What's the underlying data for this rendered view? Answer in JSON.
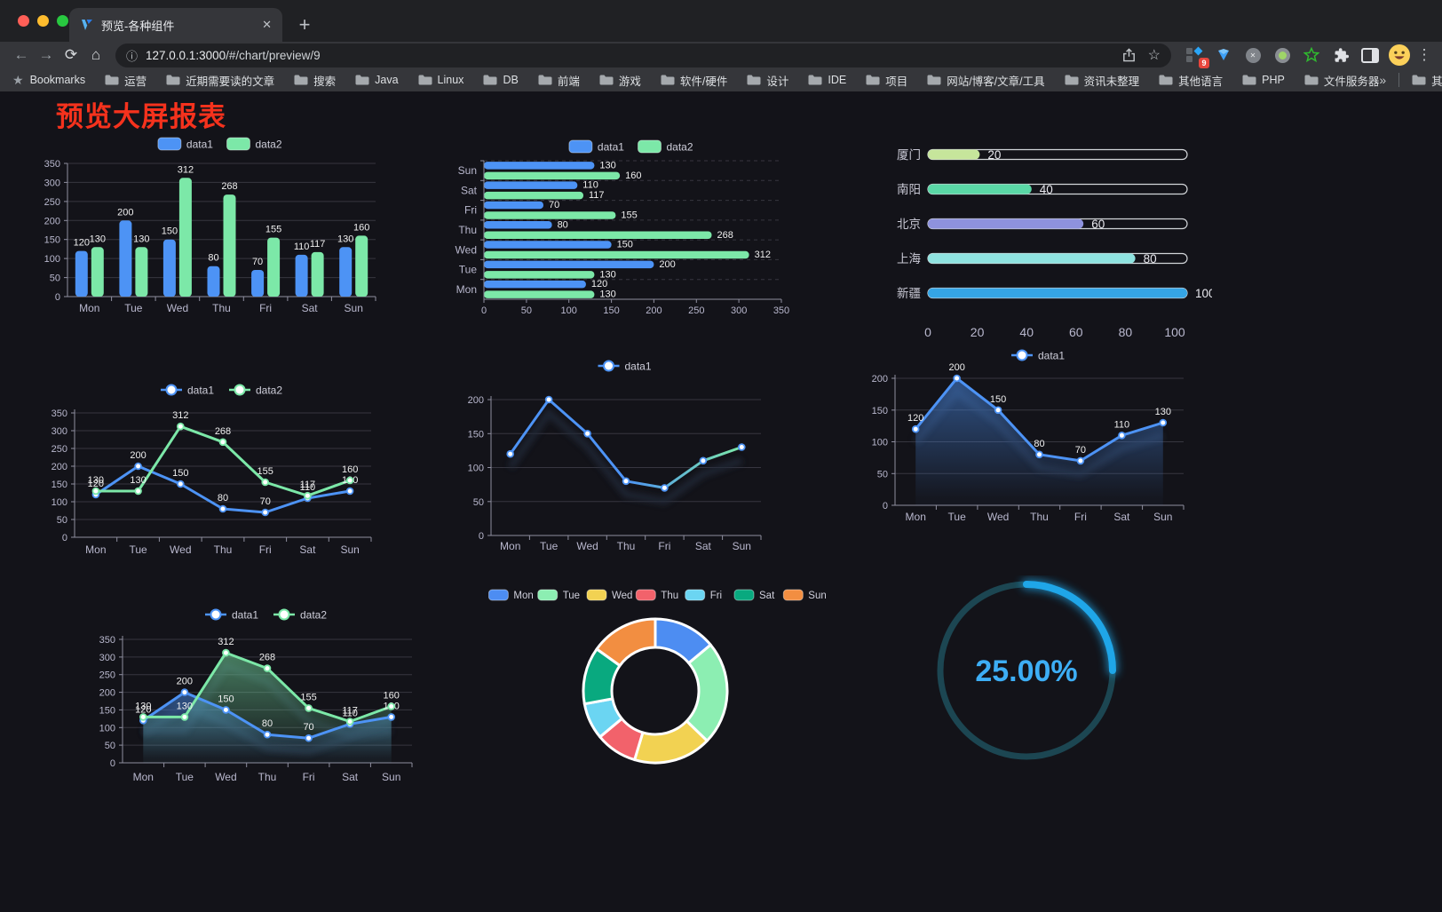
{
  "browser": {
    "tab": {
      "title": "预览-各种组件"
    },
    "new_tab_label": "+",
    "close_label": "✕",
    "address": {
      "host": "127.0.0.1:3000",
      "path": "/#/chart/preview/9"
    },
    "extensions_badge": "9",
    "bookmarks_label": "Bookmarks",
    "bookmarks": [
      "运营",
      "近期需要读的文章",
      "搜索",
      "Java",
      "Linux",
      "DB",
      "前端",
      "游戏",
      "软件/硬件",
      "设计",
      "IDE",
      "项目",
      "网站/博客/文章/工具",
      "资讯未整理",
      "其他语言",
      "PHP",
      "文件服务器"
    ],
    "bookmarks_overflow": "»",
    "other_bookmarks": "其他书签"
  },
  "page": {
    "title": "预览大屏报表",
    "title_color": "#f5321d",
    "background": "#131319"
  },
  "chart_data": [
    {
      "id": "grouped-bar",
      "type": "bar",
      "categories": [
        "Mon",
        "Tue",
        "Wed",
        "Thu",
        "Fri",
        "Sat",
        "Sun"
      ],
      "series": [
        {
          "name": "data1",
          "color": "#4d93f5",
          "values": [
            120,
            200,
            150,
            80,
            70,
            110,
            130
          ]
        },
        {
          "name": "data2",
          "color": "#7ce8a8",
          "values": [
            130,
            130,
            312,
            268,
            155,
            117,
            160
          ]
        }
      ],
      "ylim": [
        0,
        350
      ],
      "ytick": 50,
      "legend_position": "top",
      "grid": true,
      "labels": true
    },
    {
      "id": "horizontal-bar",
      "type": "bar-horizontal",
      "categories": [
        "Mon",
        "Tue",
        "Wed",
        "Thu",
        "Fri",
        "Sat",
        "Sun"
      ],
      "series": [
        {
          "name": "data1",
          "color": "#4d93f5",
          "values": [
            120,
            200,
            150,
            80,
            70,
            110,
            130
          ]
        },
        {
          "name": "data2",
          "color": "#7ce8a8",
          "values": [
            130,
            130,
            312,
            268,
            155,
            117,
            160
          ]
        }
      ],
      "xlim": [
        0,
        350
      ],
      "xtick": 50,
      "legend_position": "top",
      "grid": true,
      "labels": true
    },
    {
      "id": "city-progress",
      "type": "progress-bar",
      "rows": [
        {
          "label": "厦门",
          "value": 20,
          "color": "#c6e59b"
        },
        {
          "label": "南阳",
          "value": 40,
          "color": "#5ad8a6"
        },
        {
          "label": "北京",
          "value": 60,
          "color": "#8e92dd"
        },
        {
          "label": "上海",
          "value": 80,
          "color": "#8fe3e0"
        },
        {
          "label": "新疆",
          "value": 100,
          "color": "#35a5e5"
        }
      ],
      "xlim": [
        0,
        100
      ],
      "xticks": [
        0,
        20,
        40,
        60,
        80,
        100
      ]
    },
    {
      "id": "two-line",
      "type": "line",
      "categories": [
        "Mon",
        "Tue",
        "Wed",
        "Thu",
        "Fri",
        "Sat",
        "Sun"
      ],
      "series": [
        {
          "name": "data1",
          "color": "#4d93f5",
          "values": [
            120,
            200,
            150,
            80,
            70,
            110,
            130
          ]
        },
        {
          "name": "data2",
          "color": "#7ce8a8",
          "values": [
            130,
            130,
            312,
            268,
            155,
            117,
            160
          ]
        }
      ],
      "ylim": [
        0,
        350
      ],
      "ytick": 50,
      "labels": true,
      "area": false,
      "shadow": false,
      "legend_position": "top"
    },
    {
      "id": "gradient-line",
      "type": "line",
      "categories": [
        "Mon",
        "Tue",
        "Wed",
        "Thu",
        "Fri",
        "Sat",
        "Sun"
      ],
      "series": [
        {
          "name": "data1",
          "gradient": [
            "#4d93f5",
            "#7ce8a8"
          ],
          "values": [
            120,
            200,
            150,
            80,
            70,
            110,
            130
          ]
        }
      ],
      "ylim": [
        0,
        200
      ],
      "ytick": 50,
      "labels": false,
      "area": false,
      "shadow": true,
      "legend_position": "top"
    },
    {
      "id": "area-line",
      "type": "line",
      "categories": [
        "Mon",
        "Tue",
        "Wed",
        "Thu",
        "Fri",
        "Sat",
        "Sun"
      ],
      "series": [
        {
          "name": "data1",
          "color": "#4d93f5",
          "values": [
            120,
            200,
            150,
            80,
            70,
            110,
            130
          ]
        }
      ],
      "ylim": [
        0,
        200
      ],
      "ytick": 50,
      "labels": true,
      "area": true,
      "shadow": true,
      "legend_position": "top"
    },
    {
      "id": "two-area",
      "type": "line",
      "categories": [
        "Mon",
        "Tue",
        "Wed",
        "Thu",
        "Fri",
        "Sat",
        "Sun"
      ],
      "series": [
        {
          "name": "data1",
          "color": "#4d93f5",
          "values": [
            120,
            200,
            150,
            80,
            70,
            110,
            130
          ]
        },
        {
          "name": "data2",
          "color": "#7ce8a8",
          "values": [
            130,
            130,
            312,
            268,
            155,
            117,
            160
          ]
        }
      ],
      "ylim": [
        0,
        350
      ],
      "ytick": 50,
      "labels": true,
      "area": true,
      "shadow": true,
      "legend_position": "top"
    },
    {
      "id": "donut-pie",
      "type": "pie",
      "categories": [
        "Mon",
        "Tue",
        "Wed",
        "Thu",
        "Fri",
        "Sat",
        "Sun"
      ],
      "values": [
        120,
        200,
        150,
        80,
        70,
        110,
        130
      ],
      "colors": [
        "#4d8df2",
        "#8ceeb2",
        "#f2d252",
        "#f2626b",
        "#6bd5f2",
        "#09a97f",
        "#f28e41"
      ],
      "legend_position": "top",
      "donut": true,
      "border_color": "#ffffff"
    },
    {
      "id": "gauge",
      "type": "gauge",
      "value": 25,
      "label": "25.00%",
      "color": "#1fa6e8",
      "track_color": "#1c4652",
      "text_color": "#3daef5"
    }
  ]
}
